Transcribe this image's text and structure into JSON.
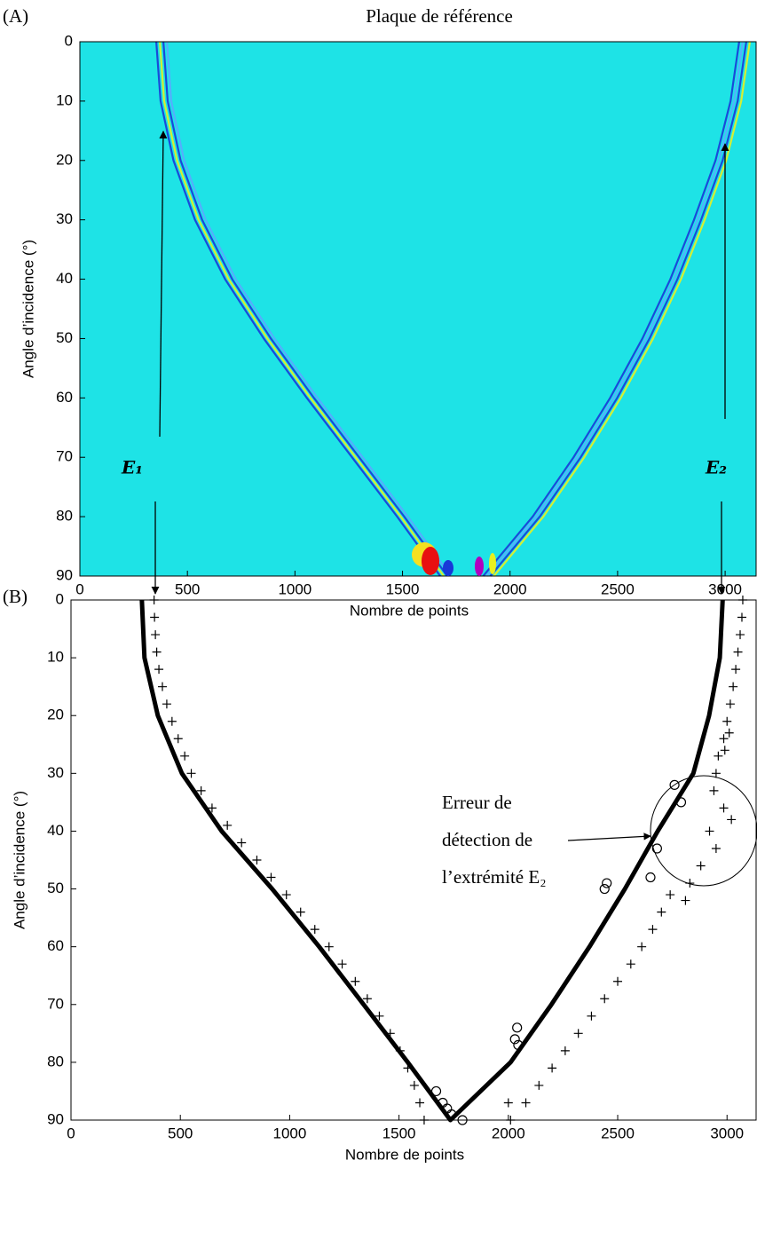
{
  "chart_data": [
    {
      "type": "heatmap",
      "panel_label": "(A)",
      "title": "Plaque de référence",
      "x_label": "Nombre de points",
      "y_label": "Angle d’incidence (°)",
      "ridge_labels": [
        "E₁",
        "E₂"
      ],
      "background": "#1ee3e6",
      "xlim": [
        0,
        3144
      ],
      "ylim": [
        0,
        90
      ],
      "xticks": [
        0,
        500,
        1000,
        1500,
        2000,
        2500,
        3000
      ],
      "yticks": [
        0,
        10,
        20,
        30,
        40,
        50,
        60,
        70,
        80,
        90
      ],
      "series": [
        {
          "colors": [
            "#1838d8",
            "#e8f020",
            "#1838d8",
            "#5aa8ff"
          ],
          "x": [
            380,
            400,
            460,
            560,
            700,
            880,
            1080,
            1290,
            1500,
            1700
          ],
          "y": [
            0,
            10,
            20,
            30,
            40,
            50,
            60,
            70,
            80,
            90
          ]
        },
        {
          "colors": [
            "#1838d8",
            "#5aa8ff",
            "#1838d8",
            "#e8f020"
          ],
          "x": [
            3090,
            3050,
            2980,
            2880,
            2770,
            2640,
            2490,
            2320,
            2130,
            1900
          ],
          "y": [
            0,
            10,
            20,
            30,
            40,
            50,
            60,
            70,
            80,
            90
          ]
        }
      ]
    },
    {
      "type": "line",
      "panel_label": "(B)",
      "x_label": "Nombre de points",
      "y_label": "Angle d’incidence (°)",
      "annotation": [
        "Erreur de",
        "détection de",
        "l’extrémité E₂"
      ],
      "xlim": [
        0,
        3133
      ],
      "ylim": [
        0,
        90
      ],
      "xticks": [
        0,
        500,
        1000,
        1500,
        2000,
        2500,
        3000
      ],
      "yticks": [
        0,
        10,
        20,
        30,
        40,
        50,
        60,
        70,
        80,
        90
      ],
      "series": [
        {
          "style": "line",
          "color": "#000000",
          "x": [
            324,
            336,
            397,
            507,
            689,
            920,
            1135,
            1338,
            1540,
            1735,
            2010,
            2197,
            2371,
            2533,
            2683,
            2846,
            2918,
            2967,
            2980
          ],
          "y": [
            0,
            10,
            20,
            30,
            40,
            50,
            60,
            70,
            80,
            90,
            80,
            70,
            60,
            50,
            40,
            30,
            20,
            10,
            0
          ]
        },
        {
          "style": "plus",
          "color": "#000000",
          "x": [
            380,
            382,
            386,
            392,
            402,
            418,
            438,
            462,
            490,
            520,
            550,
            595,
            645,
            715,
            780,
            850,
            915,
            985,
            1050,
            1115,
            1180,
            1240,
            1300,
            1355,
            1410,
            1460,
            1505,
            1540,
            1570,
            1595,
            1615
          ],
          "y": [
            0,
            3,
            6,
            9,
            12,
            15,
            18,
            21,
            24,
            27,
            30,
            33,
            36,
            39,
            42,
            45,
            48,
            51,
            54,
            57,
            60,
            63,
            66,
            69,
            72,
            75,
            78,
            81,
            84,
            87,
            90
          ]
        },
        {
          "style": "plus",
          "color": "#000000",
          "x": [
            3072,
            3068,
            3060,
            3050,
            3040,
            3028,
            3015,
            3000,
            2985,
            2960,
            2950,
            2990,
            3010,
            2940,
            2985,
            3020,
            2920,
            2950,
            2880,
            2830,
            2810,
            2740,
            2700,
            2660,
            2610,
            2560,
            2500,
            2440,
            2380,
            2320,
            2260,
            2200,
            2140,
            2080,
            2000,
            2010
          ],
          "y": [
            0,
            3,
            6,
            9,
            12,
            15,
            18,
            21,
            24,
            27,
            30,
            26,
            23,
            33,
            36,
            38,
            40,
            43,
            46,
            49,
            52,
            51,
            54,
            57,
            60,
            63,
            66,
            69,
            72,
            75,
            78,
            81,
            84,
            87,
            87,
            90
          ]
        },
        {
          "style": "circle",
          "color": "#000000",
          "x": [
            2760,
            2790,
            2680,
            2650,
            2450,
            2440,
            2040,
            2030,
            2045,
            1670,
            1700,
            1720,
            1740,
            1790
          ],
          "y": [
            32,
            35,
            43,
            48,
            49,
            50,
            74,
            76,
            77,
            85,
            87,
            88,
            89,
            90
          ]
        }
      ]
    }
  ]
}
